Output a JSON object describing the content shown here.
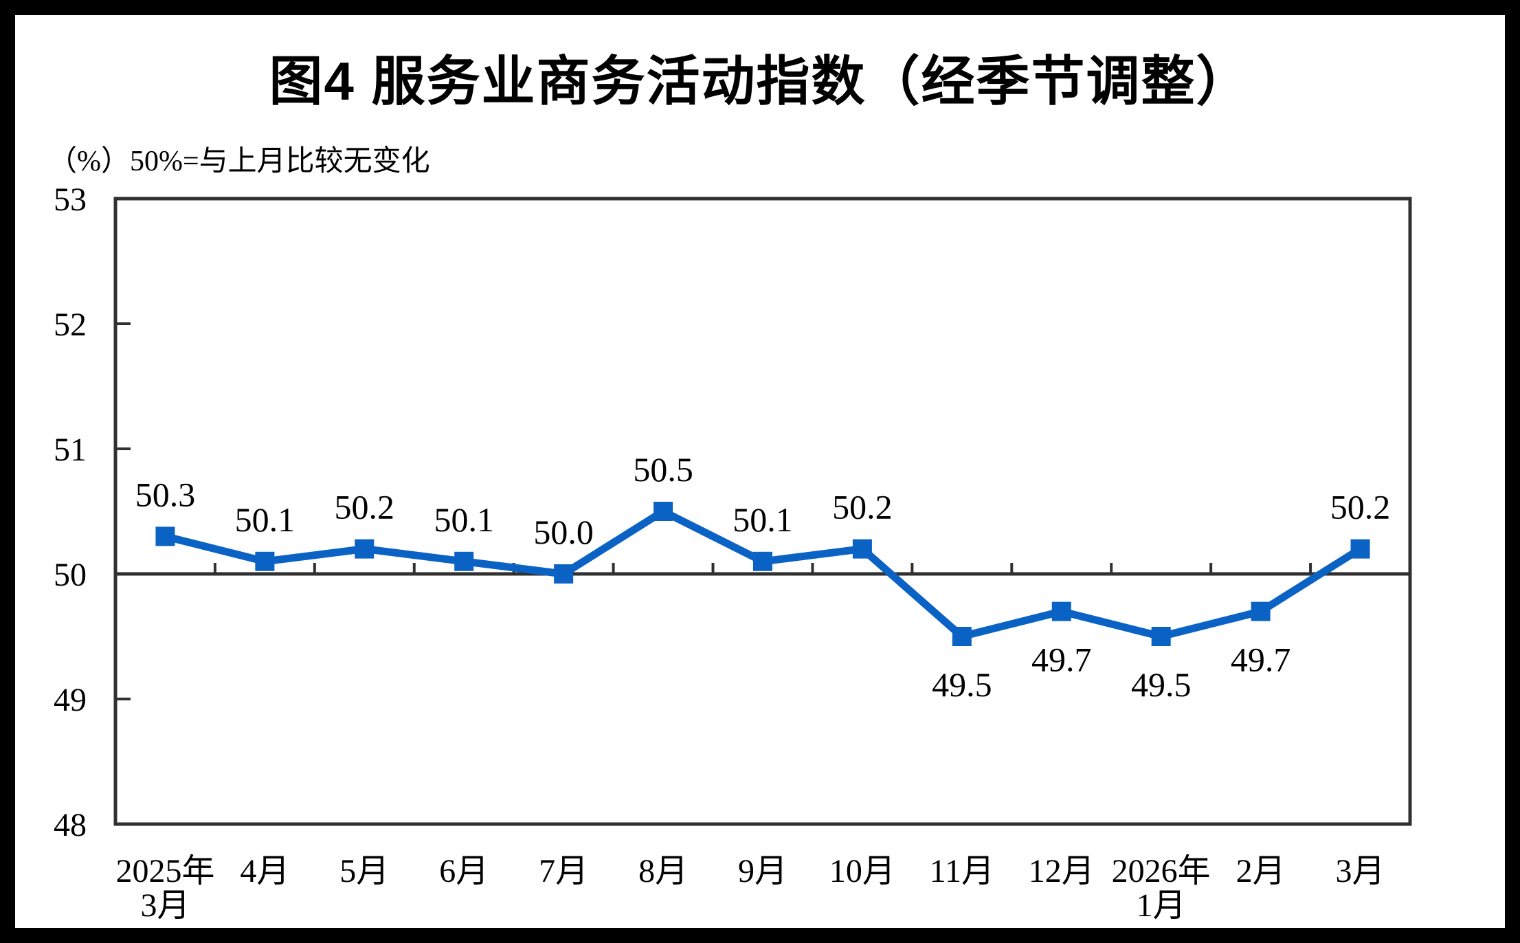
{
  "title": "图4  服务业商务活动指数（经季节调整）",
  "subtitle": "（%）50%=与上月比较无变化",
  "chart_data": {
    "type": "line",
    "title": "图4  服务业商务活动指数（经季节调整）",
    "subtitle": "（%）50%=与上月比较无变化",
    "categories": [
      "2025年\n3月",
      "4月",
      "5月",
      "6月",
      "7月",
      "8月",
      "9月",
      "10月",
      "11月",
      "12月",
      "2026年\n1月",
      "2月",
      "3月"
    ],
    "values": [
      50.3,
      50.1,
      50.2,
      50.1,
      50.0,
      50.5,
      50.1,
      50.2,
      49.5,
      49.7,
      49.5,
      49.7,
      50.2
    ],
    "data_labels": [
      "50.3",
      "50.1",
      "50.2",
      "50.1",
      "50.0",
      "50.5",
      "50.1",
      "50.2",
      "49.5",
      "49.7",
      "49.5",
      "49.7",
      "50.2"
    ],
    "ylim": [
      48,
      53
    ],
    "yticks": [
      48,
      49,
      50,
      51,
      52,
      53
    ],
    "reference_line": 50,
    "grid": "off",
    "legend": "none",
    "marker": "square",
    "colors": {
      "line": "#0A62C4",
      "marker": "#0A62C4",
      "axis": "#303030",
      "text": "#000000",
      "frame": "#000000",
      "background": "#ffffff"
    }
  }
}
